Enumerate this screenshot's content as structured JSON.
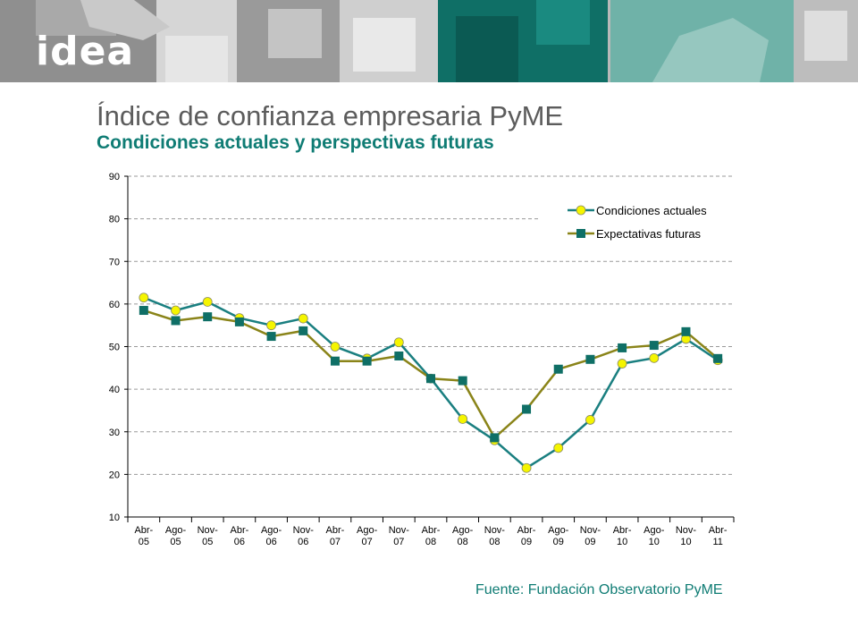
{
  "header": {
    "logo_text": "idea"
  },
  "title": "Índice de confianza empresaria PyME",
  "subtitle": "Condiciones actuales y perspectivas futuras",
  "source": "Fuente: Fundación Observatorio PyME",
  "colors": {
    "brand_teal": "#0f7c74",
    "series_actuales_line": "#1a7f80",
    "series_actuales_marker": "#f5f500",
    "series_futuras_line": "#8a8419",
    "series_futuras_marker": "#0f6f66"
  },
  "chart_data": {
    "type": "line",
    "x": [
      [
        "Abr-",
        "05"
      ],
      [
        "Ago-",
        "05"
      ],
      [
        "Nov-",
        "05"
      ],
      [
        "Abr-",
        "06"
      ],
      [
        "Ago-",
        "06"
      ],
      [
        "Nov-",
        "06"
      ],
      [
        "Abr-",
        "07"
      ],
      [
        "Ago-",
        "07"
      ],
      [
        "Nov-",
        "07"
      ],
      [
        "Abr-",
        "08"
      ],
      [
        "Ago-",
        "08"
      ],
      [
        "Nov-",
        "08"
      ],
      [
        "Abr-",
        "09"
      ],
      [
        "Ago-",
        "09"
      ],
      [
        "Nov-",
        "09"
      ],
      [
        "Abr-",
        "10"
      ],
      [
        "Ago-",
        "10"
      ],
      [
        "Nov-",
        "10"
      ],
      [
        "Abr-",
        "11"
      ]
    ],
    "series": [
      {
        "name": "Condiciones actuales",
        "marker": "circle",
        "values": [
          61.5,
          58.5,
          60.5,
          56.7,
          55.0,
          56.6,
          50.0,
          47.2,
          51.0,
          42.5,
          33.0,
          28.0,
          21.5,
          26.2,
          32.8,
          46.0,
          47.3,
          51.8,
          46.8
        ]
      },
      {
        "name": "Expectativas futuras",
        "marker": "square",
        "values": [
          58.5,
          56.1,
          57.0,
          55.8,
          52.4,
          53.7,
          46.6,
          46.6,
          47.8,
          42.5,
          42.0,
          28.6,
          35.3,
          44.7,
          47.0,
          49.7,
          50.3,
          53.5,
          47.2
        ]
      }
    ],
    "ylim": [
      10,
      90
    ],
    "yticks": [
      10,
      20,
      30,
      40,
      50,
      60,
      70,
      80,
      90
    ],
    "xlabel": "",
    "ylabel": "",
    "grid": "horizontal-dashed",
    "legend_position": "top-right"
  }
}
